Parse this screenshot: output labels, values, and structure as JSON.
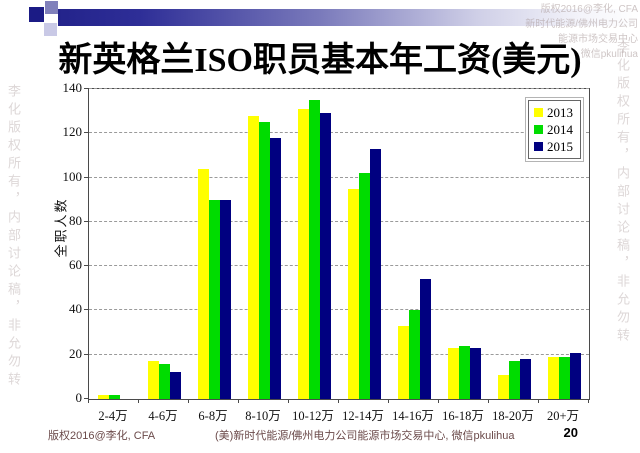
{
  "slide": {
    "title": "新英格兰ISO职员基本年工资(美元)",
    "footer": {
      "left": "版权2016@李化, CFA",
      "center": "(美)新时代能源/佛州电力公司能源市场交易中心, 微信pkulihua",
      "page_number": "20"
    },
    "watermark": {
      "corner_lines": [
        "版权2016@李化, CFA",
        "新时代能源/佛州电力公司",
        "能源市场交易中心",
        "微信pkulihua"
      ],
      "side_vertical": "李化版权所有，内部讨论稿，非允勿转"
    }
  },
  "chart_data": {
    "type": "bar",
    "title": "",
    "xlabel": "",
    "ylabel": "全职人数",
    "ylim": [
      0,
      140
    ],
    "ytick_step": 20,
    "grid": "horizontal-dashed",
    "legend_position": "top-right-inside",
    "categories": [
      "2-4万",
      "4-6万",
      "6-8万",
      "8-10万",
      "10-12万",
      "12-14万",
      "14-16万",
      "16-18万",
      "18-20万",
      "20+万"
    ],
    "series": [
      {
        "name": "2013",
        "color": "#FFFF00",
        "values": [
          2,
          17,
          104,
          128,
          131,
          95,
          33,
          23,
          11,
          19
        ]
      },
      {
        "name": "2014",
        "color": "#00DC00",
        "values": [
          2,
          16,
          90,
          125,
          135,
          102,
          40,
          24,
          17,
          19
        ]
      },
      {
        "name": "2015",
        "color": "#000080",
        "values": [
          0,
          12,
          90,
          118,
          129,
          113,
          54,
          23,
          18,
          21
        ]
      }
    ]
  }
}
